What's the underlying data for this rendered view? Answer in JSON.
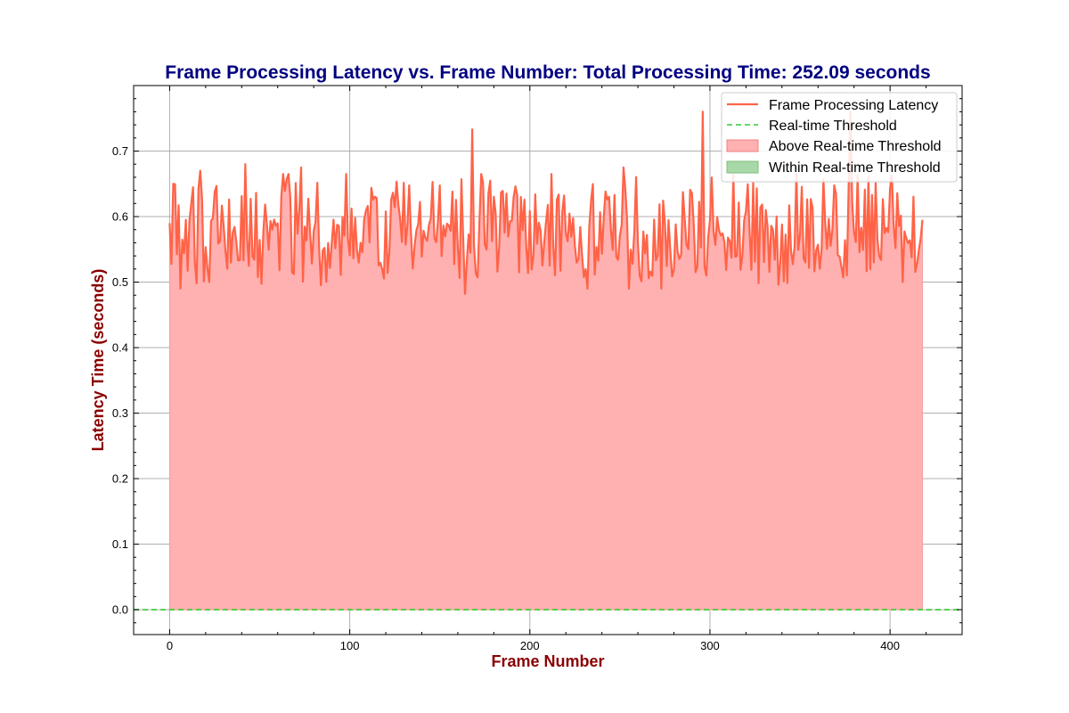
{
  "chart_data": {
    "type": "line",
    "title": "Frame Processing Latency vs. Frame Number: Total Processing Time: 252.09 seconds",
    "xlabel": "Frame Number",
    "ylabel": "Latency Time (seconds)",
    "xlim": [
      -20,
      440
    ],
    "ylim": [
      -0.038,
      0.8
    ],
    "xticks": [
      0,
      100,
      200,
      300,
      400
    ],
    "yticks": [
      0.0,
      0.1,
      0.2,
      0.3,
      0.4,
      0.5,
      0.6,
      0.7
    ],
    "xtick_labels": [
      "0",
      "100",
      "200",
      "300",
      "400"
    ],
    "ytick_labels": [
      "0.0",
      "0.1",
      "0.2",
      "0.3",
      "0.4",
      "0.5",
      "0.6",
      "0.7"
    ],
    "grid": true,
    "legend_position": "top-right",
    "threshold": 0.0,
    "frame_count": 419,
    "latency_mean": 0.58,
    "latency_min": 0.48,
    "latency_max": 0.76,
    "key_points": [
      {
        "x": 0,
        "y": 0.59
      },
      {
        "x": 2,
        "y": 0.65
      },
      {
        "x": 12,
        "y": 0.62
      },
      {
        "x": 17,
        "y": 0.67
      },
      {
        "x": 42,
        "y": 0.68
      },
      {
        "x": 73,
        "y": 0.675
      },
      {
        "x": 84,
        "y": 0.495
      },
      {
        "x": 164,
        "y": 0.482
      },
      {
        "x": 168,
        "y": 0.733
      },
      {
        "x": 252,
        "y": 0.675
      },
      {
        "x": 296,
        "y": 0.76
      },
      {
        "x": 298,
        "y": 0.51
      },
      {
        "x": 378,
        "y": 0.76
      },
      {
        "x": 418,
        "y": 0.595
      }
    ],
    "series": [
      {
        "name": "Frame Processing Latency",
        "color": "#ff6347",
        "kind": "line"
      },
      {
        "name": "Real-time Threshold",
        "color": "#32cd32",
        "kind": "dashed-line"
      },
      {
        "name": "Above Real-time Threshold",
        "color": "#ffb0b0",
        "kind": "fill"
      },
      {
        "name": "Within Real-time Threshold",
        "color": "#a8d8a8",
        "kind": "fill"
      }
    ]
  }
}
